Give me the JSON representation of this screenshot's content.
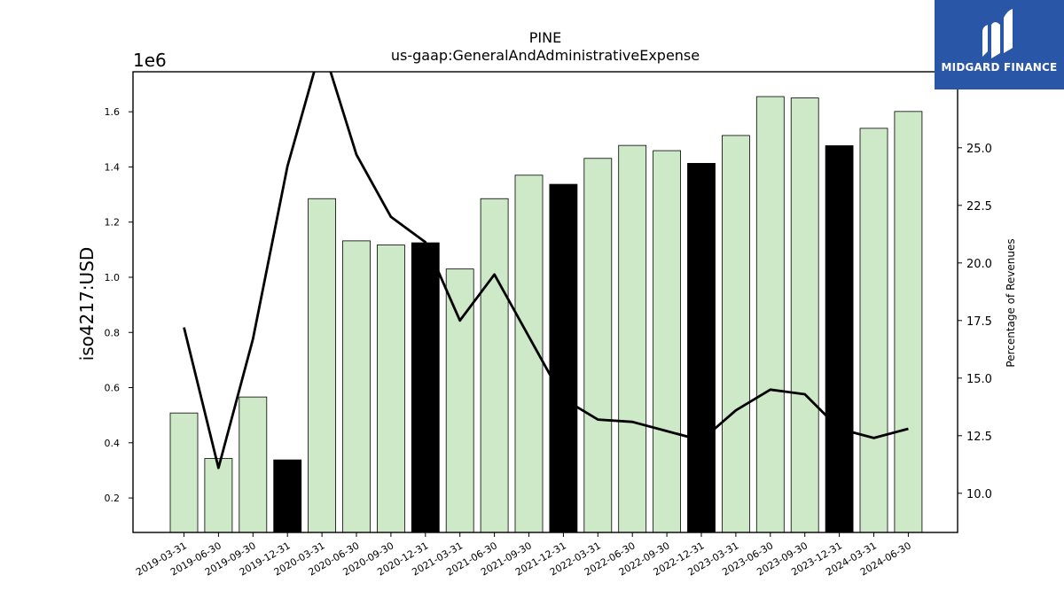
{
  "chart_data": {
    "type": "bar",
    "title": "PINE",
    "subtitle": "us-gaap:GeneralAndAdministrativeExpense",
    "ylabel": "iso4217:USD",
    "y_multiplier_label": "1e6",
    "y2label": "Percentage of Revenues",
    "categories": [
      "2019-03-31",
      "2019-06-30",
      "2019-09-30",
      "2019-12-31",
      "2020-03-31",
      "2020-06-30",
      "2020-09-30",
      "2020-12-31",
      "2021-03-31",
      "2021-06-30",
      "2021-09-30",
      "2021-12-31",
      "2022-03-31",
      "2022-06-30",
      "2022-09-30",
      "2022-12-31",
      "2023-03-31",
      "2023-06-30",
      "2023-09-30",
      "2023-12-31",
      "2024-03-31",
      "2024-06-30"
    ],
    "series": [
      {
        "type": "bar",
        "values": [
          508000,
          343000,
          566000,
          338000,
          1285000,
          1132000,
          1117000,
          1125000,
          1030000,
          1285000,
          1370000,
          1337000,
          1431000,
          1478000,
          1459000,
          1413000,
          1514000,
          1655000,
          1650000,
          1477000,
          1540000,
          1601000
        ],
        "colors": [
          "#cde9c8",
          "#cde9c8",
          "#cde9c8",
          "#000000",
          "#cde9c8",
          "#cde9c8",
          "#cde9c8",
          "#000000",
          "#cde9c8",
          "#cde9c8",
          "#cde9c8",
          "#000000",
          "#cde9c8",
          "#cde9c8",
          "#cde9c8",
          "#000000",
          "#cde9c8",
          "#cde9c8",
          "#cde9c8",
          "#000000",
          "#cde9c8",
          "#cde9c8"
        ]
      },
      {
        "type": "line",
        "axis": "right",
        "values": [
          17.2,
          11.1,
          16.7,
          24.2,
          29.5,
          24.7,
          22.0,
          20.9,
          17.5,
          19.5,
          16.8,
          14.1,
          13.2,
          13.1,
          12.7,
          12.3,
          13.6,
          14.5,
          14.3,
          12.8,
          12.4,
          12.8
        ],
        "color": "#000000"
      }
    ],
    "ylim": [
      0.075,
      1.745
    ],
    "y_ticks": [
      "0.2",
      "0.4",
      "0.6",
      "0.8",
      "1.0",
      "1.2",
      "1.4",
      "1.6"
    ],
    "y2lim": [
      8.3,
      28.3
    ],
    "y2_ticks": [
      "10.0",
      "12.5",
      "15.0",
      "17.5",
      "20.0",
      "22.5",
      "25.0"
    ],
    "grid": false,
    "bar_edge_color": "#000000"
  },
  "logo": {
    "text": "MIDGARD FINANCE",
    "color": "#2a56a8"
  }
}
